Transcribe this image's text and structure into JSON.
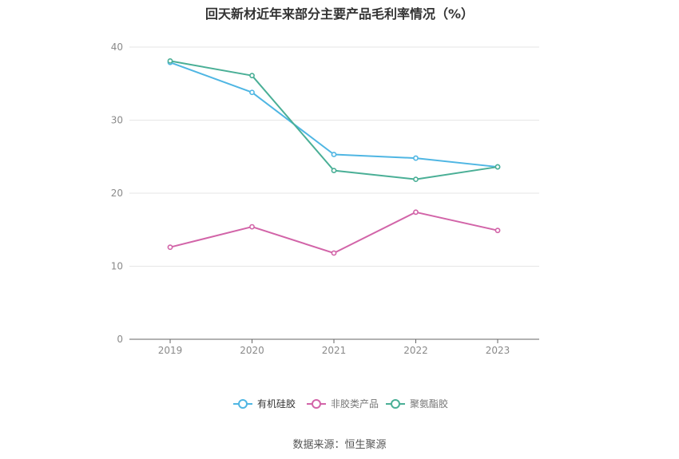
{
  "chart_data": {
    "type": "line",
    "title": "回天新材近年来部分主要产品毛利率情况（%）",
    "x": [
      "2019",
      "2020",
      "2021",
      "2022",
      "2023"
    ],
    "ylim": [
      0,
      40
    ],
    "yticks": [
      0,
      10,
      20,
      30,
      40
    ],
    "grid": true,
    "legend_position": "bottom-center",
    "series": [
      {
        "name": "有机硅胶",
        "color": "#4fb6e3",
        "values": [
          37.9,
          33.8,
          25.3,
          24.8,
          23.6
        ]
      },
      {
        "name": "非胶类产品",
        "color": "#d264a8",
        "values": [
          12.6,
          15.4,
          11.8,
          17.4,
          14.9
        ]
      },
      {
        "name": "聚氨酯胶",
        "color": "#4aaf96",
        "values": [
          38.1,
          36.1,
          23.1,
          21.9,
          23.6
        ]
      }
    ]
  },
  "source": "数据来源：恒生聚源"
}
